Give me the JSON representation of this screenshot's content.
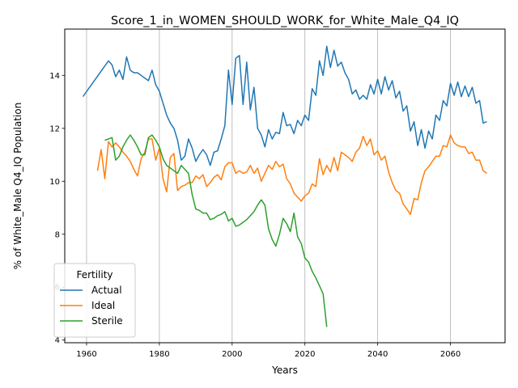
{
  "chart_data": {
    "type": "line",
    "title": "Score_1_in_WOMEN_SHOULD_WORK_for_White_Male_Q4_IQ",
    "xlabel": "Years",
    "ylabel": "% of White_Male Q4_IQ Population",
    "xlim": [
      1954,
      2075
    ],
    "ylim": [
      3.9,
      15.75
    ],
    "xticks": [
      1960,
      1980,
      2000,
      2020,
      2040,
      2060
    ],
    "yticks": [
      4,
      6,
      8,
      10,
      12,
      14
    ],
    "grid": "vertical",
    "legend": {
      "title": "Fertility",
      "placement": "lower-left"
    },
    "series": [
      {
        "name": "Actual",
        "color": "#1f77b4",
        "points": [
          [
            1959,
            13.2
          ],
          [
            1966,
            14.55
          ],
          [
            1967,
            14.4
          ],
          [
            1968,
            13.95
          ],
          [
            1969,
            14.2
          ],
          [
            1970,
            13.85
          ],
          [
            1971,
            14.7
          ],
          [
            1972,
            14.2
          ],
          [
            1973,
            14.1
          ],
          [
            1974,
            14.1
          ],
          [
            1975,
            14.0
          ],
          [
            1976,
            13.9
          ],
          [
            1977,
            13.8
          ],
          [
            1978,
            14.2
          ],
          [
            1979,
            13.65
          ],
          [
            1980,
            13.4
          ],
          [
            1981,
            12.95
          ],
          [
            1982,
            12.5
          ],
          [
            1983,
            12.2
          ],
          [
            1984,
            12.0
          ],
          [
            1985,
            11.55
          ],
          [
            1986,
            10.8
          ],
          [
            1987,
            10.95
          ],
          [
            1988,
            11.6
          ],
          [
            1989,
            11.25
          ],
          [
            1990,
            10.75
          ],
          [
            1991,
            11.0
          ],
          [
            1992,
            11.2
          ],
          [
            1993,
            11.0
          ],
          [
            1994,
            10.6
          ],
          [
            1995,
            11.1
          ],
          [
            1996,
            11.15
          ],
          [
            1997,
            11.6
          ],
          [
            1998,
            12.1
          ],
          [
            1999,
            14.2
          ],
          [
            2000,
            12.9
          ],
          [
            2001,
            14.65
          ],
          [
            2002,
            14.75
          ],
          [
            2003,
            12.9
          ],
          [
            2004,
            14.5
          ],
          [
            2005,
            12.7
          ],
          [
            2006,
            13.55
          ],
          [
            2007,
            12.0
          ],
          [
            2008,
            11.75
          ],
          [
            2009,
            11.3
          ],
          [
            2010,
            11.95
          ],
          [
            2011,
            11.6
          ],
          [
            2012,
            11.85
          ],
          [
            2013,
            11.8
          ],
          [
            2014,
            12.6
          ],
          [
            2015,
            12.1
          ],
          [
            2016,
            12.15
          ],
          [
            2017,
            11.8
          ],
          [
            2018,
            12.3
          ],
          [
            2019,
            12.1
          ],
          [
            2020,
            12.5
          ],
          [
            2021,
            12.3
          ],
          [
            2022,
            13.5
          ],
          [
            2023,
            13.25
          ],
          [
            2024,
            14.55
          ],
          [
            2025,
            14.0
          ],
          [
            2026,
            15.1
          ],
          [
            2027,
            14.3
          ],
          [
            2028,
            14.95
          ],
          [
            2029,
            14.35
          ],
          [
            2030,
            14.5
          ],
          [
            2031,
            14.1
          ],
          [
            2032,
            13.85
          ],
          [
            2033,
            13.3
          ],
          [
            2034,
            13.45
          ],
          [
            2035,
            13.1
          ],
          [
            2036,
            13.25
          ],
          [
            2037,
            13.1
          ],
          [
            2038,
            13.65
          ],
          [
            2039,
            13.3
          ],
          [
            2040,
            13.85
          ],
          [
            2041,
            13.3
          ],
          [
            2042,
            13.95
          ],
          [
            2043,
            13.45
          ],
          [
            2044,
            13.8
          ],
          [
            2045,
            13.15
          ],
          [
            2046,
            13.4
          ],
          [
            2047,
            12.65
          ],
          [
            2048,
            12.85
          ],
          [
            2049,
            11.9
          ],
          [
            2050,
            12.25
          ],
          [
            2051,
            11.35
          ],
          [
            2052,
            11.95
          ],
          [
            2053,
            11.25
          ],
          [
            2054,
            11.9
          ],
          [
            2055,
            11.6
          ],
          [
            2056,
            12.5
          ],
          [
            2057,
            12.3
          ],
          [
            2058,
            13.05
          ],
          [
            2059,
            12.85
          ],
          [
            2060,
            13.7
          ],
          [
            2061,
            13.25
          ],
          [
            2062,
            13.75
          ],
          [
            2063,
            13.2
          ],
          [
            2064,
            13.6
          ],
          [
            2065,
            13.2
          ],
          [
            2066,
            13.55
          ],
          [
            2067,
            12.95
          ],
          [
            2068,
            13.05
          ],
          [
            2069,
            12.2
          ],
          [
            2070,
            12.25
          ]
        ]
      },
      {
        "name": "Ideal",
        "color": "#ff7f0e",
        "points": [
          [
            1963,
            10.4
          ],
          [
            1964,
            11.2
          ],
          [
            1965,
            10.1
          ],
          [
            1966,
            11.5
          ],
          [
            1967,
            11.3
          ],
          [
            1968,
            11.45
          ],
          [
            1969,
            11.3
          ],
          [
            1970,
            11.1
          ],
          [
            1971,
            10.95
          ],
          [
            1972,
            10.75
          ],
          [
            1973,
            10.45
          ],
          [
            1974,
            10.2
          ],
          [
            1975,
            10.85
          ],
          [
            1976,
            11.1
          ],
          [
            1977,
            11.6
          ],
          [
            1978,
            11.6
          ],
          [
            1979,
            10.8
          ],
          [
            1980,
            11.25
          ],
          [
            1981,
            10.1
          ],
          [
            1982,
            9.6
          ],
          [
            1983,
            10.9
          ],
          [
            1984,
            11.05
          ],
          [
            1985,
            9.65
          ],
          [
            1986,
            9.8
          ],
          [
            1987,
            9.85
          ],
          [
            1988,
            9.95
          ],
          [
            1989,
            9.95
          ],
          [
            1990,
            10.2
          ],
          [
            1991,
            10.1
          ],
          [
            1992,
            10.25
          ],
          [
            1993,
            9.8
          ],
          [
            1994,
            9.95
          ],
          [
            1995,
            10.15
          ],
          [
            1996,
            10.25
          ],
          [
            1997,
            10.05
          ],
          [
            1998,
            10.55
          ],
          [
            1999,
            10.7
          ],
          [
            2000,
            10.7
          ],
          [
            2001,
            10.3
          ],
          [
            2002,
            10.4
          ],
          [
            2003,
            10.3
          ],
          [
            2004,
            10.35
          ],
          [
            2005,
            10.6
          ],
          [
            2006,
            10.3
          ],
          [
            2007,
            10.5
          ],
          [
            2008,
            10.0
          ],
          [
            2009,
            10.3
          ],
          [
            2010,
            10.6
          ],
          [
            2011,
            10.45
          ],
          [
            2012,
            10.75
          ],
          [
            2013,
            10.55
          ],
          [
            2014,
            10.65
          ],
          [
            2015,
            10.1
          ],
          [
            2016,
            9.9
          ],
          [
            2017,
            9.55
          ],
          [
            2018,
            9.4
          ],
          [
            2019,
            9.25
          ],
          [
            2020,
            9.45
          ],
          [
            2021,
            9.55
          ],
          [
            2022,
            9.9
          ],
          [
            2023,
            9.8
          ],
          [
            2024,
            10.85
          ],
          [
            2025,
            10.25
          ],
          [
            2026,
            10.6
          ],
          [
            2027,
            10.35
          ],
          [
            2028,
            10.9
          ],
          [
            2029,
            10.4
          ],
          [
            2030,
            11.1
          ],
          [
            2031,
            11.0
          ],
          [
            2032,
            10.9
          ],
          [
            2033,
            10.75
          ],
          [
            2034,
            11.1
          ],
          [
            2035,
            11.25
          ],
          [
            2036,
            11.7
          ],
          [
            2037,
            11.35
          ],
          [
            2038,
            11.6
          ],
          [
            2039,
            11.0
          ],
          [
            2040,
            11.15
          ],
          [
            2041,
            10.8
          ],
          [
            2042,
            10.95
          ],
          [
            2043,
            10.35
          ],
          [
            2044,
            9.95
          ],
          [
            2045,
            9.65
          ],
          [
            2046,
            9.55
          ],
          [
            2047,
            9.15
          ],
          [
            2048,
            8.95
          ],
          [
            2049,
            8.75
          ],
          [
            2050,
            9.35
          ],
          [
            2051,
            9.3
          ],
          [
            2052,
            9.95
          ],
          [
            2053,
            10.4
          ],
          [
            2054,
            10.55
          ],
          [
            2055,
            10.75
          ],
          [
            2056,
            10.95
          ],
          [
            2057,
            10.95
          ],
          [
            2058,
            11.35
          ],
          [
            2059,
            11.3
          ],
          [
            2060,
            11.75
          ],
          [
            2061,
            11.45
          ],
          [
            2062,
            11.35
          ],
          [
            2063,
            11.3
          ],
          [
            2064,
            11.3
          ],
          [
            2065,
            11.05
          ],
          [
            2066,
            11.1
          ],
          [
            2067,
            10.8
          ],
          [
            2068,
            10.8
          ],
          [
            2069,
            10.4
          ],
          [
            2070,
            10.3
          ]
        ]
      },
      {
        "name": "Sterile",
        "color": "#2ca02c",
        "points": [
          [
            1965,
            11.55
          ],
          [
            1966,
            11.6
          ],
          [
            1967,
            11.65
          ],
          [
            1968,
            10.8
          ],
          [
            1969,
            10.95
          ],
          [
            1970,
            11.3
          ],
          [
            1971,
            11.55
          ],
          [
            1972,
            11.75
          ],
          [
            1973,
            11.55
          ],
          [
            1974,
            11.3
          ],
          [
            1975,
            11.0
          ],
          [
            1976,
            11.0
          ],
          [
            1977,
            11.65
          ],
          [
            1978,
            11.75
          ],
          [
            1979,
            11.55
          ],
          [
            1980,
            11.3
          ],
          [
            1981,
            10.85
          ],
          [
            1982,
            10.6
          ],
          [
            1983,
            10.5
          ],
          [
            1984,
            10.4
          ],
          [
            1985,
            10.3
          ],
          [
            1986,
            10.6
          ],
          [
            1987,
            10.45
          ],
          [
            1988,
            10.3
          ],
          [
            1989,
            9.5
          ],
          [
            1990,
            8.95
          ],
          [
            1991,
            8.9
          ],
          [
            1992,
            8.8
          ],
          [
            1993,
            8.8
          ],
          [
            1994,
            8.55
          ],
          [
            1995,
            8.6
          ],
          [
            1996,
            8.7
          ],
          [
            1997,
            8.75
          ],
          [
            1998,
            8.85
          ],
          [
            1999,
            8.5
          ],
          [
            2000,
            8.6
          ],
          [
            2001,
            8.3
          ],
          [
            2002,
            8.35
          ],
          [
            2003,
            8.45
          ],
          [
            2004,
            8.55
          ],
          [
            2005,
            8.7
          ],
          [
            2006,
            8.85
          ],
          [
            2007,
            9.1
          ],
          [
            2008,
            9.3
          ],
          [
            2009,
            9.1
          ],
          [
            2010,
            8.2
          ],
          [
            2011,
            7.8
          ],
          [
            2012,
            7.55
          ],
          [
            2013,
            8.0
          ],
          [
            2014,
            8.6
          ],
          [
            2015,
            8.4
          ],
          [
            2016,
            8.1
          ],
          [
            2017,
            8.8
          ],
          [
            2018,
            7.9
          ],
          [
            2019,
            7.65
          ],
          [
            2020,
            7.1
          ],
          [
            2021,
            6.95
          ],
          [
            2022,
            6.6
          ],
          [
            2023,
            6.35
          ],
          [
            2024,
            6.05
          ],
          [
            2025,
            5.75
          ],
          [
            2026,
            4.5
          ]
        ]
      }
    ]
  }
}
